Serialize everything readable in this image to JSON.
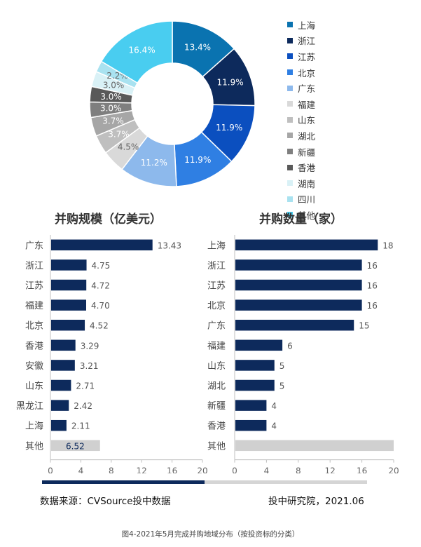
{
  "chart_data": [
    {
      "type": "pie",
      "donut": true,
      "legend_placement": "right",
      "labels": [
        "上海",
        "浙江",
        "江苏",
        "北京",
        "广东",
        "福建",
        "山东",
        "湖北",
        "新疆",
        "香港",
        "湖南",
        "四川",
        "其他"
      ],
      "values": [
        13.4,
        11.9,
        11.9,
        11.9,
        11.2,
        4.5,
        3.7,
        3.7,
        3.0,
        3.0,
        3.0,
        2.2,
        16.4
      ],
      "value_labels": [
        "13.4%",
        "11.9%",
        "11.9%",
        "11.9%",
        "11.2%",
        "4.5%",
        "3.7%",
        "3.7%",
        "3.0%",
        "3.0%",
        "3.0%",
        "2.2%",
        "16.4%"
      ],
      "colors": [
        "#0a73b0",
        "#0d2a5c",
        "#0b4fbf",
        "#2f7fe3",
        "#8db9ec",
        "#d9d9d9",
        "#bfbfbf",
        "#a6a6a6",
        "#7f7f7f",
        "#595959",
        "#d9f1f6",
        "#a9e2f0",
        "#49cdf0"
      ]
    },
    {
      "type": "bar",
      "orientation": "horizontal",
      "title": "并购规模（亿美元）",
      "categories": [
        "广东",
        "浙江",
        "江苏",
        "福建",
        "北京",
        "香港",
        "安徽",
        "山东",
        "黑龙江",
        "上海",
        "其他"
      ],
      "values": [
        13.43,
        4.75,
        4.72,
        4.7,
        4.52,
        3.29,
        3.21,
        2.71,
        2.42,
        2.11,
        6.52
      ],
      "value_labels": [
        "13.43",
        "4.75",
        "4.72",
        "4.70",
        "4.52",
        "3.29",
        "3.21",
        "2.71",
        "2.42",
        "2.11",
        "6.52"
      ],
      "xlim": [
        0,
        20
      ],
      "xticks": [
        "0",
        "4",
        "8",
        "12",
        "16",
        "20"
      ],
      "bar_color": "#0d2a5c",
      "other_color": "#d0d0d0"
    },
    {
      "type": "bar",
      "orientation": "horizontal",
      "title": "并购数量（家）",
      "categories": [
        "上海",
        "浙江",
        "江苏",
        "北京",
        "广东",
        "福建",
        "山东",
        "湖北",
        "新疆",
        "香港",
        "其他"
      ],
      "values": [
        18,
        16,
        16,
        16,
        15,
        6,
        5,
        5,
        4,
        4,
        20
      ],
      "value_labels": [
        "18",
        "16",
        "16",
        "16",
        "15",
        "6",
        "5",
        "5",
        "4",
        "4",
        ""
      ],
      "xlim": [
        0,
        20
      ],
      "xticks": [
        "0",
        "4",
        "8",
        "12",
        "16",
        "20"
      ],
      "bar_color": "#0d2a5c",
      "other_color": "#d0d0d0"
    }
  ],
  "footer": {
    "source": "数据来源：CVSource投中数据",
    "org": "投中研究院，2021.06"
  },
  "caption": "图4-2021年5月完成并购地域分布（按投资标的分类）"
}
